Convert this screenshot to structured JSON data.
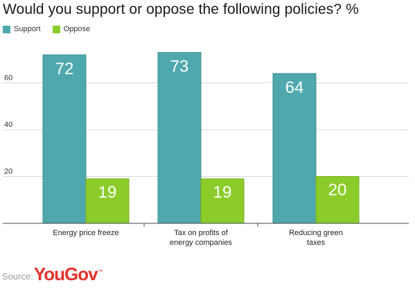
{
  "title": "Would you support or oppose the following policies? %",
  "colors": {
    "support": "#4fa8ad",
    "oppose": "#8ccc2a",
    "grid": "#d9d9d9",
    "axis": "#444444"
  },
  "source": {
    "label": "Source:",
    "logo_text": "YouGov",
    "logo_mark": "™"
  },
  "chart_data": {
    "type": "bar",
    "title": "Would you support or oppose the following policies? %",
    "categories": [
      [
        "Energy price freeze"
      ],
      [
        "Tax on profits of",
        "energy companies"
      ],
      [
        "Reducing green",
        "taxes"
      ]
    ],
    "series": [
      {
        "name": "Support",
        "values": [
          72,
          73,
          64
        ]
      },
      {
        "name": "Oppose",
        "values": [
          19,
          19,
          20
        ]
      }
    ],
    "yticks": [
      20,
      40,
      60
    ],
    "ylim": [
      0,
      75
    ],
    "grid": true,
    "legend": "top-left",
    "data_labels": true
  }
}
